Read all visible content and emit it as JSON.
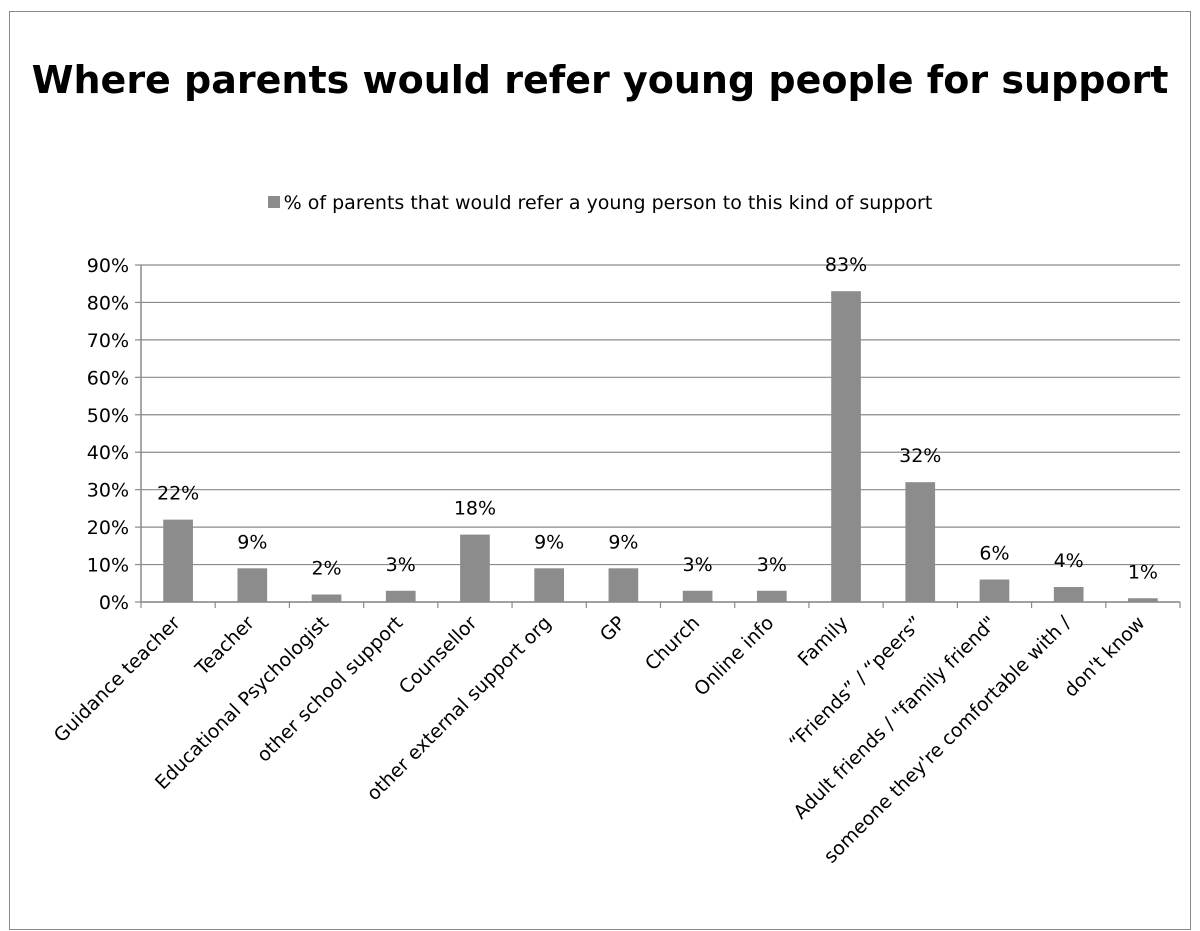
{
  "chart_data": {
    "type": "bar",
    "title": "Where parents would refer young people for support",
    "legend": "% of parents that would refer a young person to this kind of support",
    "legend_position": "top",
    "series": [
      {
        "name": "% of parents that would refer a young person to this kind of support",
        "values": [
          22,
          9,
          2,
          3,
          18,
          9,
          9,
          3,
          3,
          83,
          32,
          6,
          4,
          1
        ],
        "data_labels": [
          "22%",
          "9%",
          "2%",
          "3%",
          "18%",
          "9%",
          "9%",
          "3%",
          "3%",
          "83%",
          "32%",
          "6%",
          "4%",
          "1%"
        ]
      }
    ],
    "categories": [
      "Guidance teacher",
      "Teacher",
      "Educational Psychologist",
      "other school support",
      "Counsellor",
      "other external support org",
      "GP",
      "Church",
      "Online info",
      "Family",
      "“Friends” / “peers”",
      "Adult friends / \"family friend\"",
      "someone they're comfortable with /",
      "don't know"
    ],
    "y_ticks": [
      "0%",
      "10%",
      "20%",
      "30%",
      "40%",
      "50%",
      "60%",
      "70%",
      "80%",
      "90%"
    ],
    "ylim": [
      0,
      90
    ],
    "y_unit": "%",
    "grid": true,
    "bar_color": "#8c8c8c",
    "grid_color": "#8a8a8a"
  }
}
